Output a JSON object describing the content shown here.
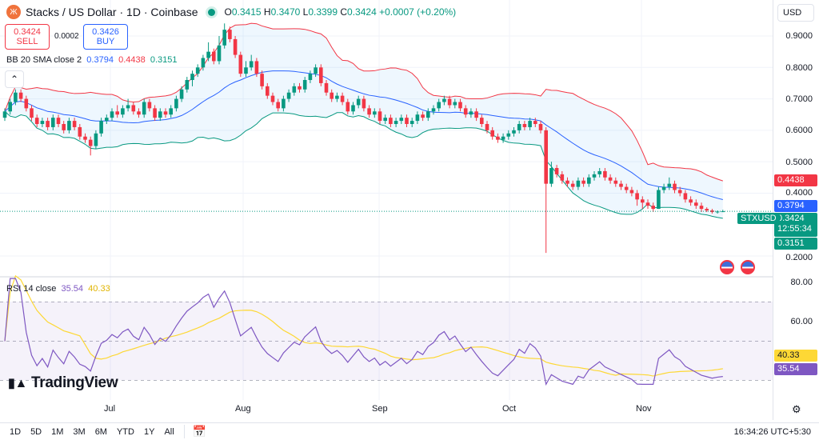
{
  "header": {
    "title": "Stacks / US Dollar · 1D · Coinbase",
    "logo_text": "Ж",
    "open": "0.3415",
    "high": "0.3470",
    "low": "0.3399",
    "close": "0.3424",
    "change": "+0.0007 (+0.20%)",
    "labels": {
      "o": "O",
      "h": "H",
      "l": "L",
      "c": "C"
    }
  },
  "trade": {
    "sell_price": "0.3424",
    "sell_label": "SELL",
    "spread": "0.0002",
    "buy_price": "0.3426",
    "buy_label": "BUY"
  },
  "bb_legend": {
    "name": "BB 20 SMA close 2",
    "basis": "0.3794",
    "upper": "0.4438",
    "lower": "0.3151"
  },
  "rsi_legend": {
    "name": "RSI 14 close",
    "rsi": "35.54",
    "ma": "40.33"
  },
  "currency": "USD",
  "symbol_tag": "STXUSD",
  "price_tags": {
    "upper": "0.4438",
    "basis": "0.3794",
    "last": "0.3424",
    "countdown": "12:55:34",
    "lower": "0.3151"
  },
  "rsi_tags": {
    "ma": "40.33",
    "rsi": "35.54"
  },
  "brand": "TradingView",
  "timeframes": [
    "1D",
    "5D",
    "1M",
    "3M",
    "6M",
    "YTD",
    "1Y",
    "All"
  ],
  "clock": "16:34:26 UTC+5:30",
  "colors": {
    "up": "#089981",
    "down": "#f23645",
    "bb_basis": "#2962ff",
    "bb_upper": "#f23645",
    "bb_lower": "#089981",
    "rsi": "#7e57c2",
    "rsi_ma": "#fdd835"
  },
  "chart_data": {
    "type": "candlestick",
    "price_axis": {
      "ticks": [
        "0.9000",
        "0.8000",
        "0.7000",
        "0.6000",
        "0.5000",
        "0.4000",
        "0.2000"
      ],
      "range": [
        0.2,
        0.9
      ]
    },
    "rsi_axis": {
      "ticks": [
        "80.00",
        "60.00"
      ],
      "bands": [
        70,
        50,
        30
      ]
    },
    "x_ticks": [
      "Jul",
      "Aug",
      "Sep",
      "Oct",
      "Nov"
    ],
    "indicators": [
      "Bollinger Bands (20, 2)",
      "RSI 14 with MA"
    ],
    "candles": [
      [
        0.64,
        0.67,
        0.63,
        0.66
      ],
      [
        0.66,
        0.7,
        0.65,
        0.69
      ],
      [
        0.69,
        0.73,
        0.68,
        0.72
      ],
      [
        0.72,
        0.73,
        0.69,
        0.7
      ],
      [
        0.7,
        0.71,
        0.66,
        0.67
      ],
      [
        0.67,
        0.68,
        0.63,
        0.64
      ],
      [
        0.64,
        0.65,
        0.61,
        0.62
      ],
      [
        0.62,
        0.64,
        0.61,
        0.63
      ],
      [
        0.63,
        0.64,
        0.6,
        0.61
      ],
      [
        0.61,
        0.65,
        0.6,
        0.64
      ],
      [
        0.64,
        0.65,
        0.61,
        0.62
      ],
      [
        0.62,
        0.63,
        0.59,
        0.6
      ],
      [
        0.6,
        0.64,
        0.59,
        0.63
      ],
      [
        0.63,
        0.64,
        0.6,
        0.61
      ],
      [
        0.61,
        0.62,
        0.57,
        0.58
      ],
      [
        0.58,
        0.59,
        0.56,
        0.57
      ],
      [
        0.57,
        0.58,
        0.52,
        0.55
      ],
      [
        0.55,
        0.6,
        0.54,
        0.59
      ],
      [
        0.59,
        0.64,
        0.58,
        0.63
      ],
      [
        0.63,
        0.65,
        0.62,
        0.64
      ],
      [
        0.64,
        0.67,
        0.63,
        0.66
      ],
      [
        0.66,
        0.68,
        0.64,
        0.65
      ],
      [
        0.65,
        0.68,
        0.64,
        0.67
      ],
      [
        0.67,
        0.7,
        0.66,
        0.68
      ],
      [
        0.68,
        0.69,
        0.65,
        0.66
      ],
      [
        0.66,
        0.67,
        0.64,
        0.65
      ],
      [
        0.65,
        0.7,
        0.64,
        0.69
      ],
      [
        0.69,
        0.7,
        0.66,
        0.67
      ],
      [
        0.67,
        0.68,
        0.63,
        0.64
      ],
      [
        0.64,
        0.67,
        0.63,
        0.66
      ],
      [
        0.66,
        0.67,
        0.64,
        0.65
      ],
      [
        0.65,
        0.68,
        0.64,
        0.67
      ],
      [
        0.67,
        0.71,
        0.66,
        0.7
      ],
      [
        0.7,
        0.74,
        0.69,
        0.73
      ],
      [
        0.73,
        0.77,
        0.72,
        0.76
      ],
      [
        0.76,
        0.79,
        0.74,
        0.78
      ],
      [
        0.78,
        0.81,
        0.77,
        0.8
      ],
      [
        0.8,
        0.84,
        0.79,
        0.83
      ],
      [
        0.83,
        0.88,
        0.82,
        0.85
      ],
      [
        0.85,
        0.86,
        0.81,
        0.82
      ],
      [
        0.82,
        0.9,
        0.81,
        0.87
      ],
      [
        0.87,
        0.94,
        0.86,
        0.92
      ],
      [
        0.92,
        0.93,
        0.88,
        0.89
      ],
      [
        0.89,
        0.9,
        0.83,
        0.84
      ],
      [
        0.84,
        0.85,
        0.77,
        0.78
      ],
      [
        0.78,
        0.82,
        0.77,
        0.8
      ],
      [
        0.8,
        0.84,
        0.79,
        0.82
      ],
      [
        0.82,
        0.83,
        0.77,
        0.78
      ],
      [
        0.78,
        0.79,
        0.73,
        0.74
      ],
      [
        0.74,
        0.75,
        0.7,
        0.71
      ],
      [
        0.71,
        0.72,
        0.68,
        0.69
      ],
      [
        0.69,
        0.7,
        0.66,
        0.67
      ],
      [
        0.67,
        0.71,
        0.66,
        0.7
      ],
      [
        0.7,
        0.73,
        0.69,
        0.72
      ],
      [
        0.72,
        0.75,
        0.71,
        0.74
      ],
      [
        0.74,
        0.75,
        0.72,
        0.73
      ],
      [
        0.73,
        0.77,
        0.72,
        0.76
      ],
      [
        0.76,
        0.79,
        0.75,
        0.78
      ],
      [
        0.78,
        0.81,
        0.77,
        0.8
      ],
      [
        0.8,
        0.81,
        0.74,
        0.75
      ],
      [
        0.75,
        0.76,
        0.71,
        0.72
      ],
      [
        0.72,
        0.73,
        0.69,
        0.7
      ],
      [
        0.7,
        0.72,
        0.69,
        0.71
      ],
      [
        0.71,
        0.72,
        0.68,
        0.69
      ],
      [
        0.69,
        0.7,
        0.65,
        0.66
      ],
      [
        0.66,
        0.69,
        0.65,
        0.68
      ],
      [
        0.68,
        0.71,
        0.67,
        0.7
      ],
      [
        0.7,
        0.71,
        0.66,
        0.67
      ],
      [
        0.67,
        0.68,
        0.64,
        0.65
      ],
      [
        0.65,
        0.67,
        0.64,
        0.66
      ],
      [
        0.66,
        0.67,
        0.62,
        0.63
      ],
      [
        0.63,
        0.65,
        0.62,
        0.64
      ],
      [
        0.64,
        0.65,
        0.61,
        0.62
      ],
      [
        0.62,
        0.64,
        0.61,
        0.63
      ],
      [
        0.63,
        0.65,
        0.62,
        0.64
      ],
      [
        0.64,
        0.65,
        0.61,
        0.62
      ],
      [
        0.62,
        0.64,
        0.61,
        0.63
      ],
      [
        0.63,
        0.66,
        0.62,
        0.65
      ],
      [
        0.65,
        0.66,
        0.63,
        0.64
      ],
      [
        0.64,
        0.67,
        0.63,
        0.66
      ],
      [
        0.66,
        0.68,
        0.65,
        0.67
      ],
      [
        0.67,
        0.7,
        0.66,
        0.69
      ],
      [
        0.69,
        0.71,
        0.68,
        0.7
      ],
      [
        0.7,
        0.71,
        0.67,
        0.68
      ],
      [
        0.68,
        0.7,
        0.67,
        0.69
      ],
      [
        0.69,
        0.7,
        0.66,
        0.67
      ],
      [
        0.67,
        0.68,
        0.64,
        0.65
      ],
      [
        0.65,
        0.67,
        0.64,
        0.66
      ],
      [
        0.66,
        0.67,
        0.63,
        0.64
      ],
      [
        0.64,
        0.65,
        0.61,
        0.62
      ],
      [
        0.62,
        0.63,
        0.59,
        0.6
      ],
      [
        0.6,
        0.61,
        0.57,
        0.58
      ],
      [
        0.58,
        0.59,
        0.56,
        0.57
      ],
      [
        0.57,
        0.59,
        0.56,
        0.58
      ],
      [
        0.58,
        0.6,
        0.57,
        0.59
      ],
      [
        0.59,
        0.61,
        0.58,
        0.6
      ],
      [
        0.6,
        0.63,
        0.59,
        0.62
      ],
      [
        0.62,
        0.63,
        0.6,
        0.61
      ],
      [
        0.61,
        0.64,
        0.6,
        0.63
      ],
      [
        0.63,
        0.64,
        0.61,
        0.62
      ],
      [
        0.62,
        0.63,
        0.59,
        0.6
      ],
      [
        0.6,
        0.61,
        0.21,
        0.43
      ],
      [
        0.43,
        0.5,
        0.42,
        0.48
      ],
      [
        0.48,
        0.49,
        0.45,
        0.46
      ],
      [
        0.46,
        0.47,
        0.43,
        0.44
      ],
      [
        0.44,
        0.45,
        0.42,
        0.43
      ],
      [
        0.43,
        0.44,
        0.41,
        0.42
      ],
      [
        0.42,
        0.45,
        0.41,
        0.44
      ],
      [
        0.44,
        0.45,
        0.42,
        0.43
      ],
      [
        0.43,
        0.46,
        0.42,
        0.45
      ],
      [
        0.45,
        0.47,
        0.44,
        0.46
      ],
      [
        0.46,
        0.48,
        0.45,
        0.47
      ],
      [
        0.47,
        0.48,
        0.44,
        0.45
      ],
      [
        0.45,
        0.46,
        0.43,
        0.44
      ],
      [
        0.44,
        0.45,
        0.42,
        0.43
      ],
      [
        0.43,
        0.44,
        0.41,
        0.42
      ],
      [
        0.42,
        0.43,
        0.4,
        0.41
      ],
      [
        0.41,
        0.42,
        0.39,
        0.4
      ],
      [
        0.4,
        0.41,
        0.36,
        0.38
      ],
      [
        0.38,
        0.39,
        0.35,
        0.37
      ],
      [
        0.37,
        0.38,
        0.35,
        0.36
      ],
      [
        0.36,
        0.37,
        0.34,
        0.35
      ],
      [
        0.35,
        0.42,
        0.35,
        0.41
      ],
      [
        0.41,
        0.43,
        0.4,
        0.42
      ],
      [
        0.42,
        0.45,
        0.41,
        0.43
      ],
      [
        0.43,
        0.44,
        0.4,
        0.41
      ],
      [
        0.41,
        0.42,
        0.39,
        0.4
      ],
      [
        0.4,
        0.41,
        0.37,
        0.38
      ],
      [
        0.38,
        0.39,
        0.36,
        0.37
      ],
      [
        0.37,
        0.38,
        0.35,
        0.36
      ],
      [
        0.36,
        0.37,
        0.34,
        0.35
      ],
      [
        0.35,
        0.355,
        0.34,
        0.345
      ],
      [
        0.345,
        0.35,
        0.335,
        0.34
      ],
      [
        0.34,
        0.345,
        0.335,
        0.3415
      ],
      [
        0.3415,
        0.347,
        0.3399,
        0.3424
      ]
    ]
  }
}
